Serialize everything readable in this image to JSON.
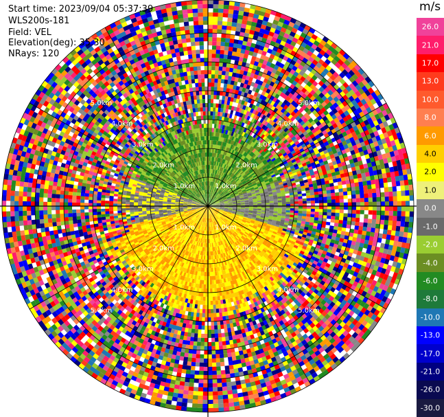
{
  "header": {
    "start_time": "Start time: 2023/09/04 05:37:39",
    "instrument": "WLS200s-181",
    "field": "Field: VEL",
    "elevation": "Elevation(deg): 35.30",
    "nrays": "NRays: 120"
  },
  "colorbar": {
    "unit": "m/s",
    "ticks": [
      "26.0",
      "21.0",
      "17.0",
      "13.0",
      "10.0",
      "8.0",
      "6.0",
      "4.0",
      "2.0",
      "1.0",
      "0.0",
      "-1.0",
      "-2.0",
      "-4.0",
      "-6.0",
      "-8.0",
      "-10.0",
      "-13.0",
      "-17.0",
      "-21.0",
      "-26.0",
      "-30.0"
    ],
    "colors": [
      "#f0429a",
      "#ff1d6b",
      "#ff0000",
      "#ff3b1d",
      "#ff5a2d",
      "#ff7f50",
      "#ff9a00",
      "#ffcf00",
      "#ffff00",
      "#eef07a",
      "#888888",
      "#6a6a6a",
      "#9acd32",
      "#6b8e23",
      "#228b22",
      "#1e7a3a",
      "#1f77b4",
      "#0000ff",
      "#0000cd",
      "#000080",
      "#0a0a50",
      "#1a1a40"
    ]
  },
  "ring_labels": [
    "1.0km",
    "1.0km",
    "1.0km",
    "1.0km",
    "2.0km",
    "2.0km",
    "2.0km",
    "2.0km",
    "3.0km",
    "3.0km",
    "3.0km",
    "3.0km",
    "4.0km",
    "4.0km",
    "4.0km",
    "4.0km",
    "5.0km",
    "5.0km",
    "5.0km",
    "5.0km"
  ],
  "map_palette": {
    "near_north": [
      "#6b8e23",
      "#228b22",
      "#9acd32"
    ],
    "near_east": [
      "#888888",
      "#6a6a6a",
      "#9acd32"
    ],
    "near_south": [
      "#ff9a00",
      "#ffcf00",
      "#ffff00"
    ],
    "near_west": [
      "#888888",
      "#6a6a6a",
      "#ffff00"
    ],
    "far_noise": [
      "#f0429a",
      "#ff1d6b",
      "#ff0000",
      "#ff3b1d",
      "#ff7f50",
      "#ff9a00",
      "#ffff00",
      "#6b8e23",
      "#228b22",
      "#1f77b4",
      "#0000ff",
      "#0000cd",
      "#000080",
      "#888888",
      "#9acd32",
      "#ffffff"
    ]
  }
}
